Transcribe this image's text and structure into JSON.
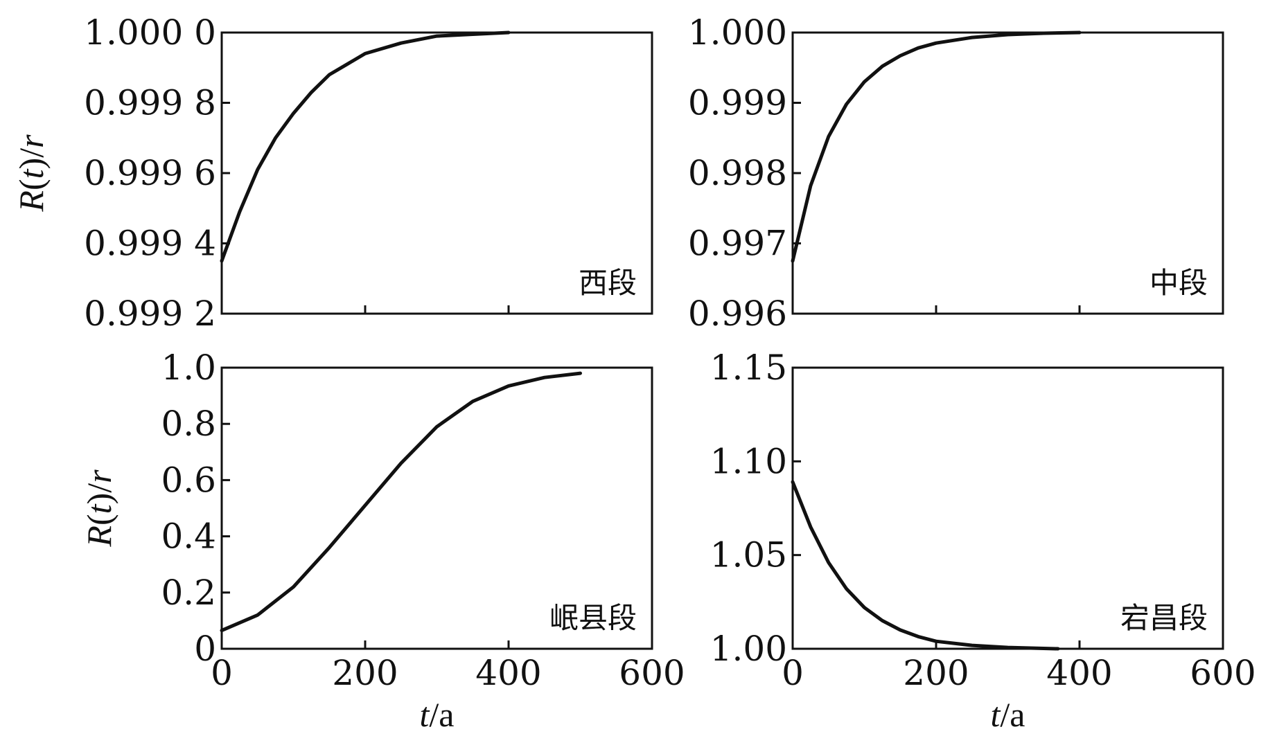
{
  "chart_data": [
    {
      "type": "line",
      "panel_label": "西段",
      "xlim": [
        0,
        600
      ],
      "ylim": [
        0.9992,
        1.0
      ],
      "xticks": [
        0,
        200,
        400,
        600
      ],
      "xtick_labels": [
        "",
        "",
        "",
        ""
      ],
      "yticks": [
        0.9992,
        0.9994,
        0.9996,
        0.9998,
        1.0
      ],
      "ytick_labels": [
        "0.999 2",
        "0.999 4",
        "0.999 6",
        "0.999 8",
        "1.000 0"
      ],
      "ylabel": "R(t)/r",
      "xlabel": "",
      "series": [
        {
          "values": [
            [
              0,
              0.99935
            ],
            [
              25,
              0.99949
            ],
            [
              50,
              0.99961
            ],
            [
              75,
              0.9997
            ],
            [
              100,
              0.99977
            ],
            [
              125,
              0.99983
            ],
            [
              150,
              0.99988
            ],
            [
              175,
              0.99991
            ],
            [
              200,
              0.99994
            ],
            [
              250,
              0.99997
            ],
            [
              300,
              0.99999
            ],
            [
              350,
              0.999995
            ],
            [
              400,
              1.0
            ]
          ]
        }
      ]
    },
    {
      "type": "line",
      "panel_label": "中段",
      "xlim": [
        0,
        600
      ],
      "ylim": [
        0.996,
        1.0
      ],
      "xticks": [
        0,
        200,
        400,
        600
      ],
      "xtick_labels": [
        "",
        "",
        "",
        ""
      ],
      "yticks": [
        0.996,
        0.997,
        0.998,
        0.999,
        1.0
      ],
      "ytick_labels": [
        "0.996",
        "0.997",
        "0.998",
        "0.999",
        "1.000"
      ],
      "ylabel": "",
      "xlabel": "",
      "series": [
        {
          "values": [
            [
              0,
              0.99675
            ],
            [
              25,
              0.99782
            ],
            [
              50,
              0.99852
            ],
            [
              75,
              0.99898
            ],
            [
              100,
              0.9993
            ],
            [
              125,
              0.99952
            ],
            [
              150,
              0.99967
            ],
            [
              175,
              0.99978
            ],
            [
              200,
              0.99985
            ],
            [
              250,
              0.99993
            ],
            [
              300,
              0.99997
            ],
            [
              350,
              0.99999
            ],
            [
              400,
              1.0
            ]
          ]
        }
      ]
    },
    {
      "type": "line",
      "panel_label": "岷县段",
      "xlim": [
        0,
        600
      ],
      "ylim": [
        0,
        1.0
      ],
      "xticks": [
        0,
        200,
        400,
        600
      ],
      "xtick_labels": [
        "0",
        "200",
        "400",
        "600"
      ],
      "yticks": [
        0,
        0.2,
        0.4,
        0.6,
        0.8,
        1.0
      ],
      "ytick_labels": [
        "0",
        "0.2",
        "0.4",
        "0.6",
        "0.8",
        "1.0"
      ],
      "ylabel": "R(t)/r",
      "xlabel": "t/a",
      "series": [
        {
          "values": [
            [
              0,
              0.065
            ],
            [
              50,
              0.12
            ],
            [
              100,
              0.22
            ],
            [
              150,
              0.36
            ],
            [
              200,
              0.51
            ],
            [
              250,
              0.66
            ],
            [
              300,
              0.79
            ],
            [
              350,
              0.88
            ],
            [
              400,
              0.935
            ],
            [
              450,
              0.965
            ],
            [
              500,
              0.98
            ]
          ]
        }
      ]
    },
    {
      "type": "line",
      "panel_label": "宕昌段",
      "xlim": [
        0,
        600
      ],
      "ylim": [
        1.0,
        1.15
      ],
      "xticks": [
        0,
        200,
        400,
        600
      ],
      "xtick_labels": [
        "0",
        "200",
        "400",
        "600"
      ],
      "yticks": [
        1.0,
        1.05,
        1.1,
        1.15
      ],
      "ytick_labels": [
        "1.00",
        "1.05",
        "1.10",
        "1.15"
      ],
      "ylabel": "",
      "xlabel": "t/a",
      "series": [
        {
          "values": [
            [
              0,
              1.089
            ],
            [
              25,
              1.065
            ],
            [
              50,
              1.046
            ],
            [
              75,
              1.032
            ],
            [
              100,
              1.022
            ],
            [
              125,
              1.015
            ],
            [
              150,
              1.01
            ],
            [
              175,
              1.0065
            ],
            [
              200,
              1.004
            ],
            [
              250,
              1.0018
            ],
            [
              300,
              1.0007
            ],
            [
              350,
              1.0002
            ],
            [
              370,
              1.0
            ]
          ]
        }
      ]
    }
  ]
}
